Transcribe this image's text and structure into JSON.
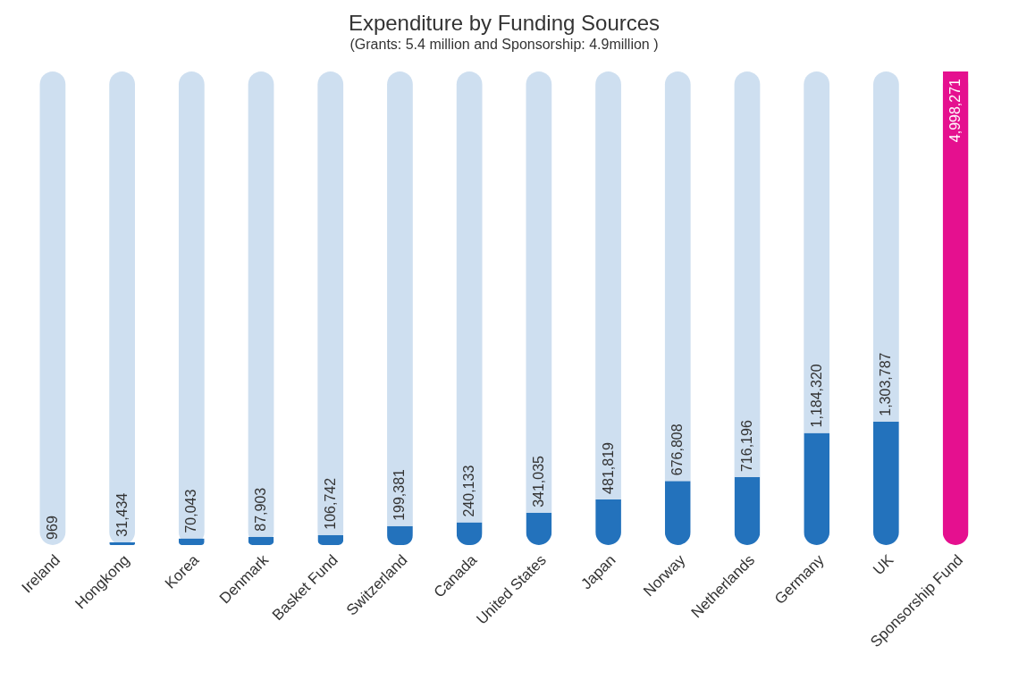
{
  "chart_data": {
    "type": "bar",
    "title": "Expenditure by Funding Sources",
    "subtitle": "(Grants:   5.4 million and Sponsorship:  4.9million )",
    "categories": [
      "Ireland",
      "Hongkong",
      "Korea",
      "Denmark",
      "Basket Fund",
      "Switzerland",
      "Canada",
      "United States",
      "Japan",
      "Norway",
      "Netherlands",
      "Germany",
      "UK",
      "Sponsorship Fund"
    ],
    "values": [
      969,
      31434,
      70043,
      87903,
      106742,
      199381,
      240133,
      341035,
      481819,
      676808,
      716196,
      1184320,
      1303787,
      4998271
    ],
    "colors": [
      "#2372bc",
      "#2372bc",
      "#2372bc",
      "#2372bc",
      "#2372bc",
      "#2372bc",
      "#2372bc",
      "#2372bc",
      "#2372bc",
      "#2372bc",
      "#2372bc",
      "#2372bc",
      "#2372bc",
      "#e5108f"
    ],
    "value_labels": [
      "969",
      "31,434",
      "70,043",
      "87,903",
      "106,742",
      "199,381",
      "240,133",
      "341,035",
      "481,819",
      "676,808",
      "716,196",
      "1,184,320",
      "1,303,787",
      "4,998,271"
    ],
    "tick_labels": "x",
    "grid": false
  }
}
